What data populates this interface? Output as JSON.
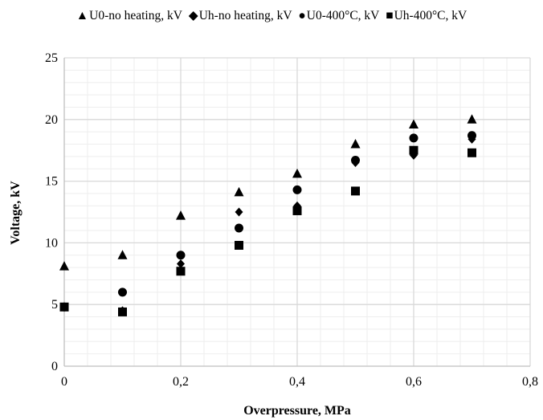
{
  "chart_data": {
    "type": "scatter",
    "title": "",
    "xlabel": "Overpressure, MPa",
    "ylabel": "Voltage, kV",
    "xlim": [
      0,
      0.8
    ],
    "ylim": [
      0,
      25
    ],
    "x_ticks": [
      0,
      0.2,
      0.4,
      0.6,
      0.8
    ],
    "x_tick_labels": [
      "0",
      "0,2",
      "0,4",
      "0,6",
      "0,8"
    ],
    "y_ticks": [
      0,
      5,
      10,
      15,
      20,
      25
    ],
    "y_tick_labels": [
      "0",
      "5",
      "10",
      "15",
      "20",
      "25"
    ],
    "grid": true,
    "legend_position": "top",
    "series": [
      {
        "name": "U0-no heating, kV",
        "marker": "triangle",
        "symbol": "▲",
        "x": [
          0,
          0.1,
          0.2,
          0.3,
          0.4,
          0.5,
          0.6,
          0.7
        ],
        "y": [
          8.1,
          9.0,
          12.2,
          14.1,
          15.6,
          18.0,
          19.6,
          20.0
        ]
      },
      {
        "name": "Uh-no heating, kV",
        "marker": "diamond",
        "symbol": "◆",
        "x": [
          0,
          0.1,
          0.2,
          0.3,
          0.4,
          0.5,
          0.6,
          0.7
        ],
        "y": [
          4.8,
          4.5,
          8.3,
          12.5,
          13.0,
          16.5,
          17.1,
          18.4
        ]
      },
      {
        "name": "U0-400°C, kV",
        "marker": "circle",
        "symbol": "●",
        "x": [
          0,
          0.1,
          0.2,
          0.3,
          0.4,
          0.5,
          0.6,
          0.7
        ],
        "y": [
          4.8,
          6.0,
          9.0,
          11.2,
          14.3,
          16.7,
          18.5,
          18.7
        ]
      },
      {
        "name": "Uh-400°C, kV",
        "marker": "square",
        "symbol": "■",
        "x": [
          0,
          0.1,
          0.2,
          0.3,
          0.4,
          0.5,
          0.6,
          0.7
        ],
        "y": [
          4.8,
          4.4,
          7.7,
          9.8,
          12.6,
          14.2,
          17.5,
          17.3
        ]
      }
    ],
    "colors": {
      "marker": "#000000",
      "major_grid": "#d9d9d9",
      "minor_grid": "#eeeeee",
      "axis": "#000000"
    }
  }
}
